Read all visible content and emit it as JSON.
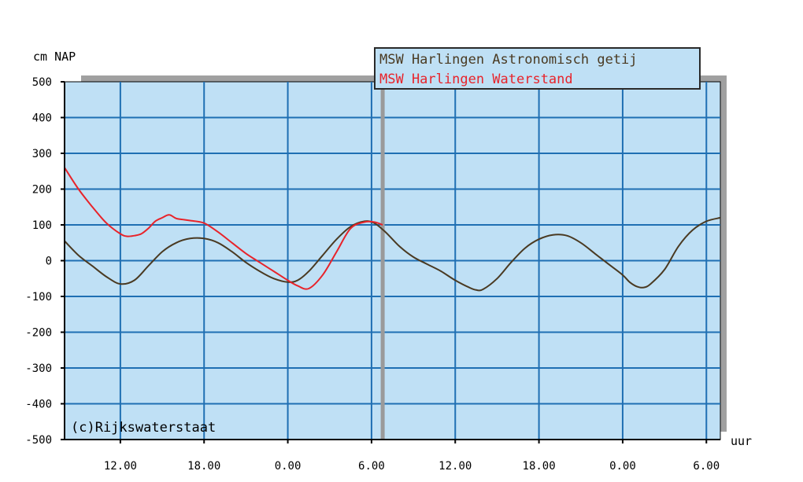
{
  "chart_data": {
    "type": "line",
    "ylabel": "cm NAP",
    "xunit": "uur",
    "copyright": "(c)Rijkswaterstaat",
    "ylim": [
      -500,
      500
    ],
    "yticks": [
      500,
      400,
      300,
      200,
      100,
      0,
      -100,
      -200,
      -300,
      -400,
      -500
    ],
    "xlim": [
      8,
      55
    ],
    "xticks": [
      {
        "x": 12,
        "label": "12.00"
      },
      {
        "x": 18,
        "label": "18.00"
      },
      {
        "x": 24,
        "label": "0.00"
      },
      {
        "x": 30,
        "label": "6.00"
      },
      {
        "x": 36,
        "label": "12.00"
      },
      {
        "x": 42,
        "label": "18.00"
      },
      {
        "x": 48,
        "label": "0.00"
      },
      {
        "x": 54,
        "label": "6.00"
      }
    ],
    "now_marker": 30.8,
    "grid": true,
    "legend_position": "top-right",
    "colors": {
      "plot_bg": "#bfe0f5",
      "grid": "#1f6fb3",
      "astro": "#4a3a22",
      "measured": "#e8232a",
      "marker": "#9a9a9a"
    },
    "series": [
      {
        "name": "MSW Harlingen Astronomisch getij",
        "color": "#4a3a22",
        "x": [
          8,
          9,
          10,
          11,
          12,
          13,
          14,
          15,
          16,
          17,
          18,
          19,
          20,
          21,
          22,
          23,
          24,
          24.7,
          25.5,
          26.5,
          27.5,
          28.5,
          29.5,
          30.2,
          31,
          32,
          33,
          34,
          35,
          36,
          37,
          37.5,
          38,
          39,
          40,
          41,
          42,
          43,
          44,
          45,
          46,
          47,
          48,
          48.5,
          49,
          49.5,
          50,
          51,
          52,
          53,
          54,
          55
        ],
        "y": [
          55,
          15,
          -15,
          -45,
          -65,
          -55,
          -15,
          25,
          50,
          62,
          62,
          50,
          25,
          -5,
          -30,
          -50,
          -60,
          -55,
          -30,
          15,
          60,
          95,
          110,
          105,
          80,
          40,
          10,
          -10,
          -30,
          -55,
          -75,
          -82,
          -80,
          -50,
          -5,
          35,
          60,
          72,
          70,
          50,
          20,
          -10,
          -40,
          -60,
          -72,
          -75,
          -65,
          -25,
          40,
          85,
          110,
          120
        ]
      },
      {
        "name": "MSW Harlingen Waterstand",
        "color": "#e8232a",
        "x": [
          8,
          9,
          10,
          11,
          12,
          12.5,
          13,
          13.5,
          14,
          14.5,
          15,
          15.5,
          16,
          16.5,
          17,
          18,
          19,
          20,
          21,
          22,
          23,
          24,
          24.7,
          25.5,
          26.5,
          27.5,
          28.5,
          29.5,
          30.2,
          30.8
        ],
        "y": [
          260,
          200,
          150,
          105,
          75,
          68,
          70,
          75,
          90,
          110,
          120,
          128,
          118,
          115,
          112,
          105,
          80,
          50,
          20,
          -5,
          -30,
          -55,
          -70,
          -78,
          -40,
          25,
          90,
          108,
          108,
          100
        ]
      }
    ]
  }
}
